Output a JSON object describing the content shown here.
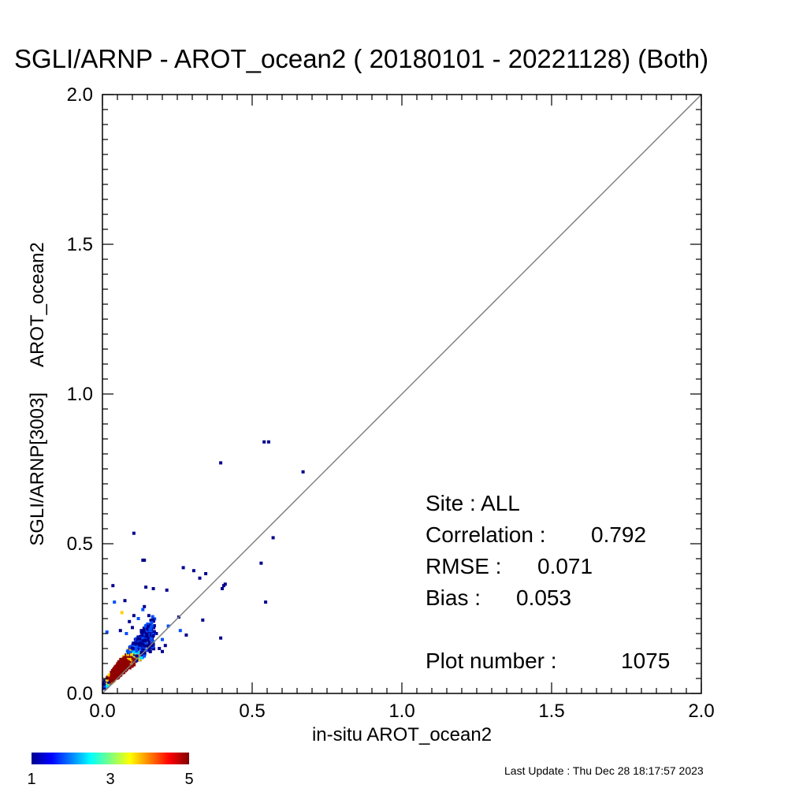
{
  "chart_data": {
    "type": "scatter",
    "title": "SGLI/ARNP - AROT_ocean2 ( 20180101 - 20221128) (Both)",
    "xlabel": "in-situ AROT_ocean2",
    "ylabel": "SGLI/ARNP[3003]     AROT_ocean2",
    "xlim": [
      0.0,
      2.0
    ],
    "ylim": [
      0.0,
      2.0
    ],
    "xticks": [
      "0.0",
      "0.5",
      "1.0",
      "1.5",
      "2.0"
    ],
    "yticks": [
      "0.0",
      "0.5",
      "1.0",
      "1.5",
      "2.0"
    ],
    "reference_line": "1:1",
    "stats": {
      "site": "Site : ALL",
      "correlation_label": "Correlation :",
      "correlation_value": "0.792",
      "rmse_label": "RMSE :",
      "rmse_value": "0.071",
      "bias_label": "Bias :",
      "bias_value": "0.053",
      "plot_number_label": "Plot number :",
      "plot_number_value": "1075"
    },
    "colorbar": {
      "labels": [
        "1",
        "3",
        "5"
      ],
      "min": 1,
      "max": 5,
      "colormap": "jet"
    },
    "points": [
      {
        "x": 0.54,
        "y": 0.84,
        "c": 1
      },
      {
        "x": 0.555,
        "y": 0.84,
        "c": 1
      },
      {
        "x": 0.395,
        "y": 0.77,
        "c": 1
      },
      {
        "x": 0.67,
        "y": 0.74,
        "c": 1
      },
      {
        "x": 0.105,
        "y": 0.535,
        "c": 1
      },
      {
        "x": 0.57,
        "y": 0.52,
        "c": 1
      },
      {
        "x": 0.135,
        "y": 0.445,
        "c": 1
      },
      {
        "x": 0.14,
        "y": 0.445,
        "c": 1
      },
      {
        "x": 0.53,
        "y": 0.435,
        "c": 1
      },
      {
        "x": 0.27,
        "y": 0.42,
        "c": 1
      },
      {
        "x": 0.305,
        "y": 0.41,
        "c": 1
      },
      {
        "x": 0.345,
        "y": 0.4,
        "c": 1
      },
      {
        "x": 0.325,
        "y": 0.385,
        "c": 1
      },
      {
        "x": 0.405,
        "y": 0.36,
        "c": 1
      },
      {
        "x": 0.41,
        "y": 0.365,
        "c": 1
      },
      {
        "x": 0.4,
        "y": 0.35,
        "c": 1
      },
      {
        "x": 0.035,
        "y": 0.36,
        "c": 1
      },
      {
        "x": 0.145,
        "y": 0.355,
        "c": 1
      },
      {
        "x": 0.17,
        "y": 0.35,
        "c": 1
      },
      {
        "x": 0.215,
        "y": 0.345,
        "c": 1
      },
      {
        "x": 0.545,
        "y": 0.305,
        "c": 1
      },
      {
        "x": 0.04,
        "y": 0.305,
        "c": 2
      },
      {
        "x": 0.075,
        "y": 0.31,
        "c": 1
      },
      {
        "x": 0.14,
        "y": 0.29,
        "c": 1
      },
      {
        "x": 0.135,
        "y": 0.28,
        "c": 2
      },
      {
        "x": 0.065,
        "y": 0.27,
        "c": 4
      },
      {
        "x": 0.105,
        "y": 0.26,
        "c": 1
      },
      {
        "x": 0.155,
        "y": 0.26,
        "c": 1
      },
      {
        "x": 0.255,
        "y": 0.255,
        "c": 1
      },
      {
        "x": 0.335,
        "y": 0.245,
        "c": 1
      },
      {
        "x": 0.28,
        "y": 0.195,
        "c": 1
      },
      {
        "x": 0.395,
        "y": 0.185,
        "c": 1
      },
      {
        "x": 0.22,
        "y": 0.225,
        "c": 2
      },
      {
        "x": 0.26,
        "y": 0.21,
        "c": 2
      },
      {
        "x": 0.015,
        "y": 0.205,
        "c": 2
      },
      {
        "x": 0.2,
        "y": 0.14,
        "c": 1
      },
      {
        "x": 0.19,
        "y": 0.15,
        "c": 1
      },
      {
        "x": 0.12,
        "y": 0.25,
        "c": 2
      },
      {
        "x": 0.09,
        "y": 0.24,
        "c": 1
      },
      {
        "x": 0.1,
        "y": 0.22,
        "c": 1
      },
      {
        "x": 0.16,
        "y": 0.23,
        "c": 1
      },
      {
        "x": 0.18,
        "y": 0.2,
        "c": 1
      },
      {
        "x": 0.2,
        "y": 0.18,
        "c": 2
      },
      {
        "x": 0.06,
        "y": 0.21,
        "c": 1
      },
      {
        "x": 0.08,
        "y": 0.2,
        "c": 2
      },
      {
        "x": 0.13,
        "y": 0.21,
        "c": 1
      },
      {
        "x": 0.15,
        "y": 0.19,
        "c": 2
      },
      {
        "x": 0.17,
        "y": 0.17,
        "c": 3
      },
      {
        "x": 0.11,
        "y": 0.18,
        "c": 1
      },
      {
        "x": 0.21,
        "y": 0.16,
        "c": 1
      }
    ]
  },
  "footer": {
    "last_update": "Last Update : Thu Dec 28 18:17:57 2023"
  }
}
